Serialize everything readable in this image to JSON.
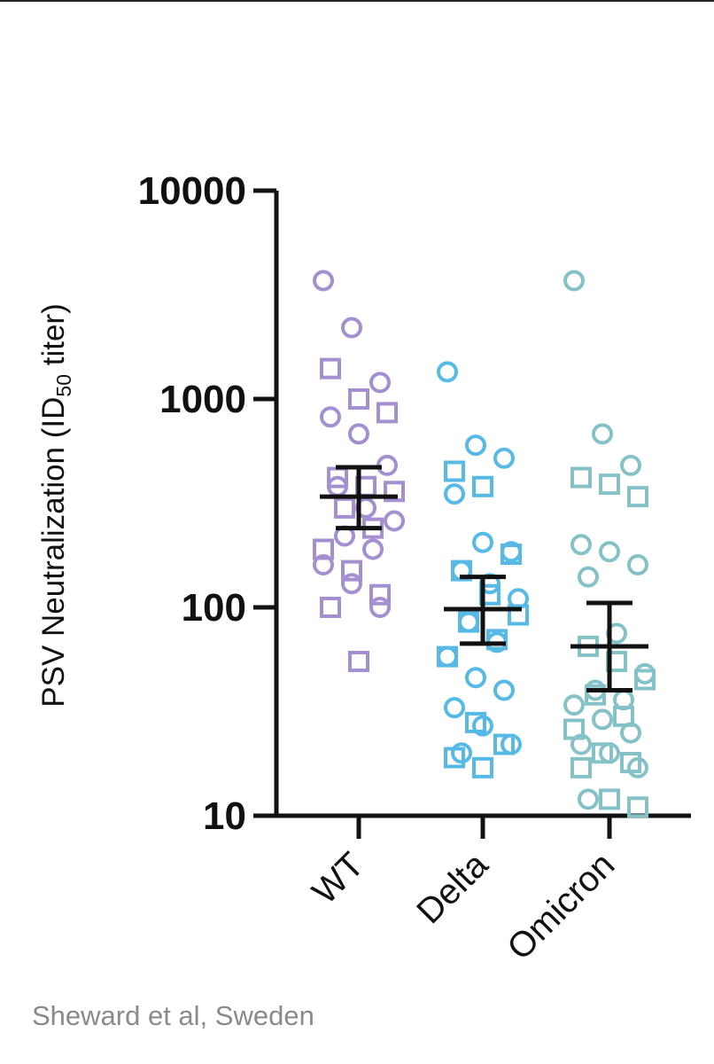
{
  "caption": "Sheward et al, Sweden",
  "chart_data": {
    "type": "scatter",
    "ylabel_main": "PSV Neutralization (ID",
    "ylabel_sub": "50",
    "ylabel_tail": " titer)",
    "yscale": "log",
    "ylim": [
      10,
      10000
    ],
    "yticks": [
      {
        "value": 10,
        "label": "10"
      },
      {
        "value": 100,
        "label": "100"
      },
      {
        "value": 1000,
        "label": "1000"
      },
      {
        "value": 10000,
        "label": "10000"
      }
    ],
    "categories": [
      "WT",
      "Delta",
      "Omicron"
    ],
    "groups": [
      {
        "category": "WT",
        "color": "#a48fd0",
        "mean": 340,
        "err_low": 240,
        "err_high": 470,
        "circles": [
          3700,
          2200,
          1200,
          820,
          680,
          480,
          380,
          300,
          260,
          220,
          190,
          160,
          130,
          100
        ],
        "squares": [
          1400,
          1000,
          860,
          420,
          380,
          360,
          300,
          240,
          190,
          150,
          115,
          100,
          55
        ]
      },
      {
        "category": "Delta",
        "color": "#57b9e6",
        "mean": 98,
        "err_low": 67,
        "err_high": 140,
        "circles": [
          1350,
          600,
          520,
          350,
          205,
          185,
          150,
          130,
          110,
          85,
          68,
          58,
          46,
          40,
          33,
          27,
          22,
          20
        ],
        "squares": [
          450,
          380,
          180,
          150,
          115,
          92,
          85,
          70,
          58,
          28,
          22,
          19,
          17
        ]
      },
      {
        "category": "Omicron",
        "color": "#85c2c8",
        "mean": 65,
        "err_low": 40,
        "err_high": 105,
        "circles": [
          3700,
          680,
          480,
          200,
          185,
          160,
          140,
          75,
          48,
          40,
          36,
          34,
          29,
          25,
          22,
          20,
          17,
          12
        ],
        "squares": [
          420,
          390,
          340,
          65,
          55,
          45,
          38,
          30,
          26,
          20,
          18,
          17,
          12,
          11
        ]
      }
    ]
  }
}
